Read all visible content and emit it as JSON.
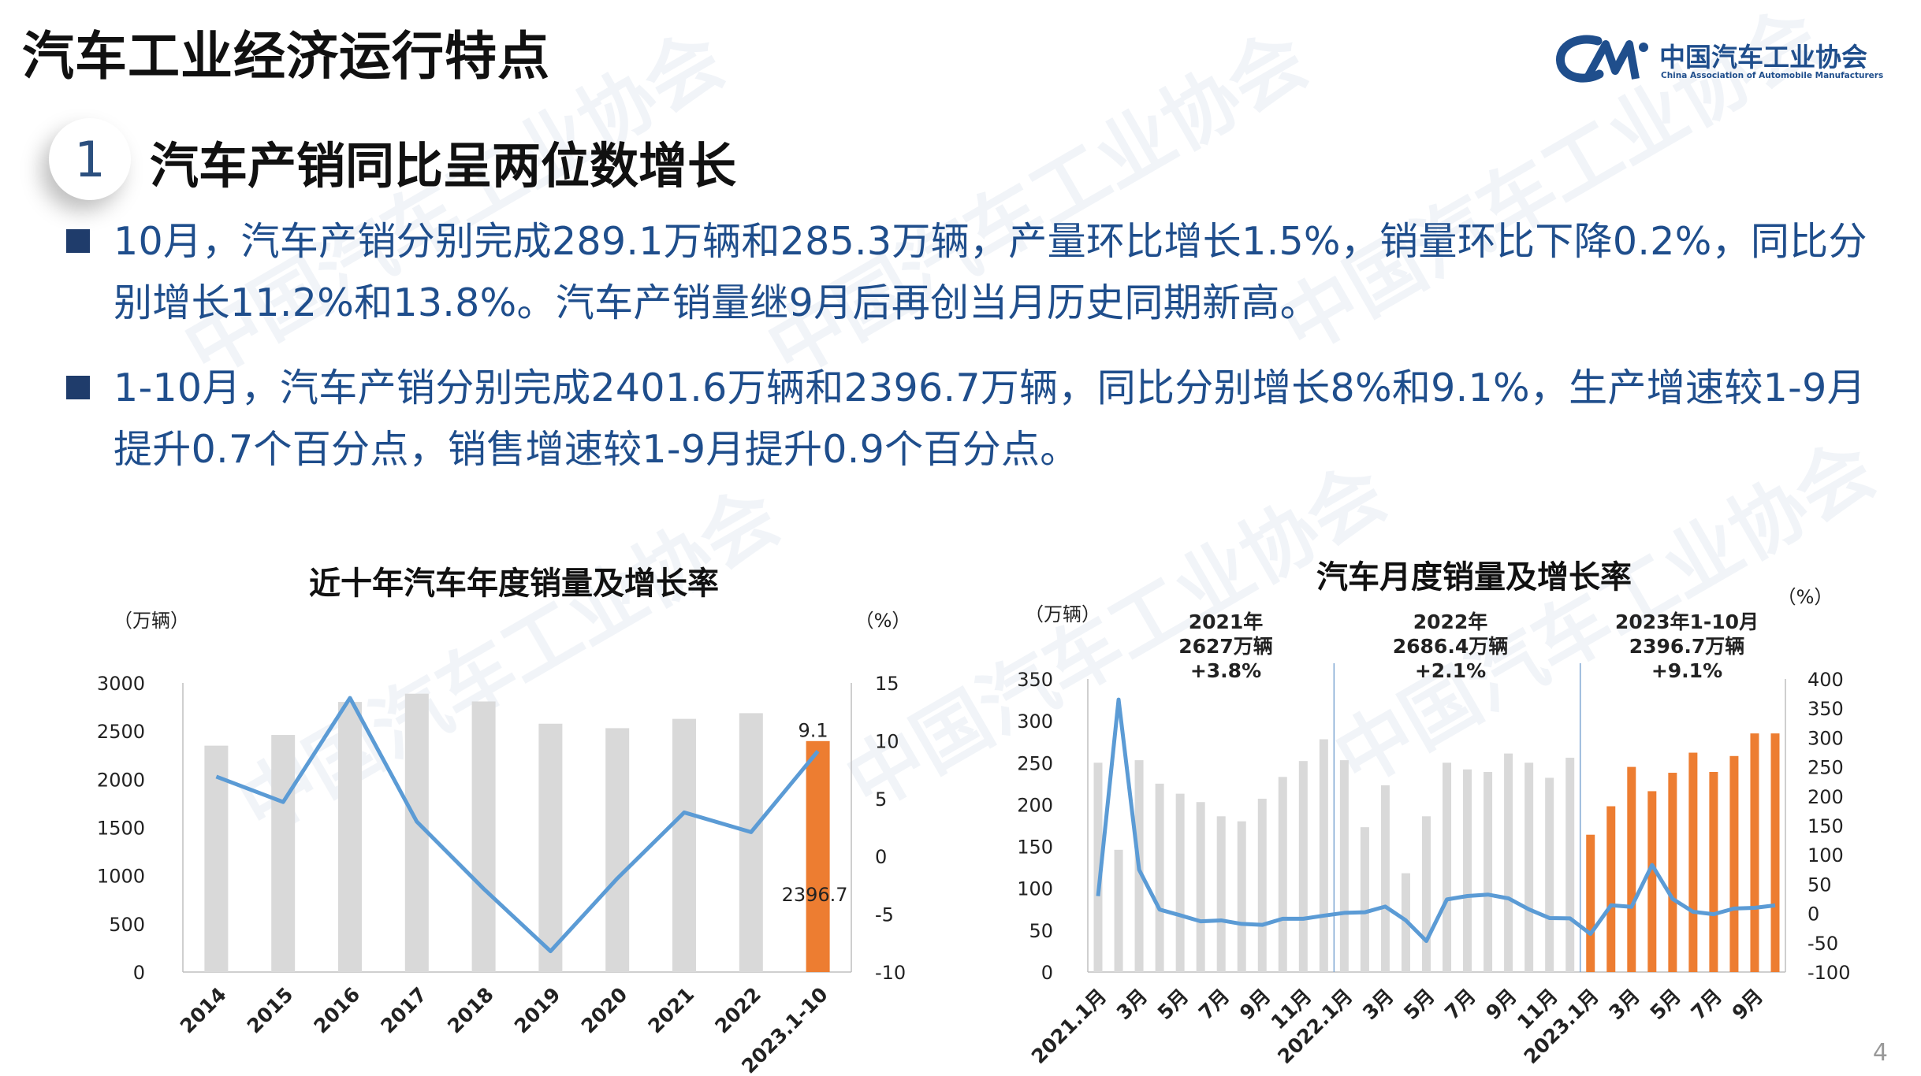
{
  "page": {
    "title": "汽车工业经济运行特点",
    "number": "4"
  },
  "logo": {
    "name_cn": "中国汽车工业协会",
    "name_en": "China Association of Automobile Manufacturers",
    "watermark_text": "中国汽车工业协会"
  },
  "section": {
    "number": "1",
    "heading": "汽车产销同比呈两位数增长"
  },
  "bullets": [
    "10月，汽车产销分别完成289.1万辆和285.3万辆，产量环比增长1.5%，销量环比下降0.2%，同比分别增长11.2%和13.8%。汽车产销量继9月后再创当月历史同期新高。",
    "1-10月，汽车产销分别完成2401.6万辆和2396.7万辆，同比分别增长8%和9.1%，生产增速较1-9月提升0.7个百分点，销售增速较1-9月提升0.9个百分点。"
  ],
  "colors": {
    "accent": "#1f4e8c",
    "bar_gray": "#d9d9d9",
    "bar_orange": "#ed7d31",
    "line_blue": "#5b9bd5",
    "bullet_square": "#1f3c6b"
  },
  "chart_data": [
    {
      "type": "bar+line",
      "title": "近十年汽车年度销量及增长率",
      "left_unit": "（万辆）",
      "right_unit": "（%）",
      "categories": [
        "2014",
        "2015",
        "2016",
        "2017",
        "2018",
        "2019",
        "2020",
        "2021",
        "2022",
        "2023.1-10"
      ],
      "series": [
        {
          "kind": "bar",
          "values": [
            2349,
            2460,
            2803,
            2888,
            2808,
            2577,
            2531,
            2627,
            2686,
            2396.7
          ],
          "highlight_index": 9
        },
        {
          "kind": "line",
          "axis": "right",
          "values": [
            6.9,
            4.7,
            13.7,
            3.0,
            -2.8,
            -8.2,
            -1.9,
            3.8,
            2.1,
            9.1
          ]
        }
      ],
      "ylim_left": [
        0,
        3000
      ],
      "left_ticks": [
        "3000",
        "2500",
        "2000",
        "1500",
        "1000",
        "500",
        "0"
      ],
      "ylim_right": [
        -10,
        15
      ],
      "right_ticks": [
        "15",
        "10",
        "5",
        "0",
        "-5",
        "-10"
      ],
      "annotations": {
        "line_last": "9.1",
        "bar_last": "2396.7"
      }
    },
    {
      "type": "bar+line",
      "title": "汽车月度销量及增长率",
      "left_unit": "（万辆）",
      "right_unit": "（%）",
      "x_labels": [
        "2021.1月",
        "3月",
        "5月",
        "7月",
        "9月",
        "11月",
        "2022.1月",
        "3月",
        "5月",
        "7月",
        "9月",
        "11月",
        "2023.1月",
        "3月",
        "5月",
        "7月",
        "9月"
      ],
      "series": [
        {
          "kind": "bar",
          "name": "sales",
          "values": [
            250,
            146,
            253,
            225,
            213,
            203,
            186,
            180,
            207,
            233,
            252,
            278,
            253,
            173,
            223,
            118,
            186,
            250,
            242,
            239,
            261,
            250,
            232,
            256,
            164,
            198,
            245,
            216,
            238,
            262,
            239,
            258,
            285,
            285
          ],
          "orange_from_index": 24
        },
        {
          "kind": "line",
          "axis": "right",
          "values": [
            29.5,
            364.9,
            74.6,
            6.6,
            -3.1,
            -13.5,
            -11.9,
            -17.9,
            -19.6,
            -9.1,
            -9.1,
            -3.8,
            0.9,
            1.9,
            11.7,
            -11.9,
            -47.1,
            23.8,
            29.7,
            32.1,
            25.7,
            6.9,
            -7.9,
            -8.4,
            -35.0,
            13.9,
            11.2,
            82.7,
            24.9,
            2.8,
            -1.4,
            8.4,
            9.5,
            13.8
          ]
        }
      ],
      "ylim_left": [
        0,
        350
      ],
      "left_ticks": [
        "350",
        "300",
        "250",
        "200",
        "150",
        "100",
        "50",
        "0"
      ],
      "ylim_right": [
        -100,
        400
      ],
      "right_ticks": [
        "400",
        "350",
        "300",
        "250",
        "200",
        "150",
        "100",
        "50",
        "0",
        "-50",
        "-100"
      ],
      "annotations": [
        {
          "year": "2021年",
          "total": "2627万辆",
          "growth": "+3.8%"
        },
        {
          "year": "2022年",
          "total": "2686.4万辆",
          "growth": "+2.1%"
        },
        {
          "year": "2023年1-10月",
          "total": "2396.7万辆",
          "growth": "+9.1%"
        }
      ]
    }
  ]
}
